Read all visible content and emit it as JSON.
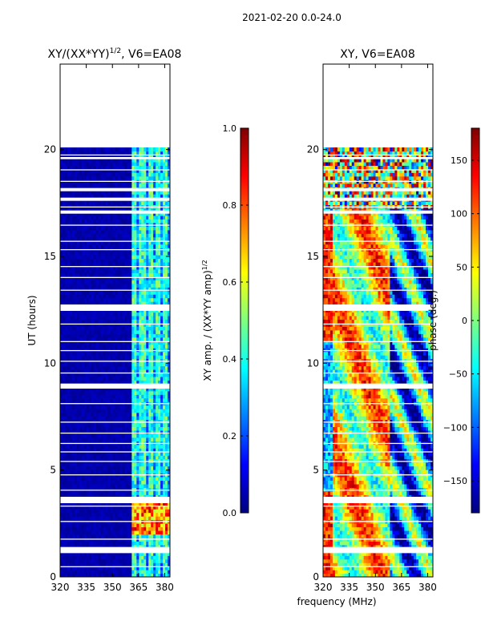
{
  "figure_title": "2021-02-20 0.0-24.0",
  "colors": {
    "jet": [
      "#00007f",
      "#0000ff",
      "#007fff",
      "#00ffff",
      "#7fff7f",
      "#ffff00",
      "#ff7f00",
      "#ff0000",
      "#7f0000"
    ]
  },
  "chart_data": [
    {
      "type": "heatmap",
      "title_prefix": "XY/(XX*YY)",
      "title_sup": "1/2",
      "title_suffix": ", V6=EA08",
      "xlabel": "",
      "ylabel": "UT (hours)",
      "xlim": [
        320,
        383
      ],
      "ylim": [
        0,
        24
      ],
      "xticks": [
        320,
        335,
        350,
        365,
        380
      ],
      "yticks": [
        0,
        5,
        10,
        15,
        20
      ],
      "data_ut_range": [
        0,
        20.1
      ],
      "colorbar": {
        "label_prefix": "XY amp. / (XX*YY amp)",
        "label_sup": "1/2",
        "range": [
          0.0,
          1.0
        ],
        "ticks": [
          "0.0",
          "0.2",
          "0.4",
          "0.6",
          "0.8",
          "1.0"
        ],
        "tick_values": [
          0.0,
          0.2,
          0.4,
          0.6,
          0.8,
          1.0
        ]
      }
    },
    {
      "type": "heatmap",
      "title_prefix": "XY, V6=EA08",
      "title_sup": "",
      "title_suffix": "",
      "xlabel": "frequency (MHz)",
      "ylabel": "",
      "xlim": [
        320,
        383
      ],
      "ylim": [
        0,
        24
      ],
      "xticks": [
        320,
        335,
        350,
        365,
        380
      ],
      "yticks": [
        0,
        5,
        10,
        15,
        20
      ],
      "data_ut_range": [
        0,
        20.1
      ],
      "colorbar": {
        "label_prefix": "phase (deg.)",
        "label_sup": "",
        "range": [
          -180,
          180
        ],
        "ticks": [
          "−150",
          "−100",
          "−50",
          "0",
          "50",
          "100",
          "150"
        ],
        "tick_values": [
          -150,
          -100,
          -50,
          0,
          50,
          100,
          150
        ]
      }
    }
  ]
}
